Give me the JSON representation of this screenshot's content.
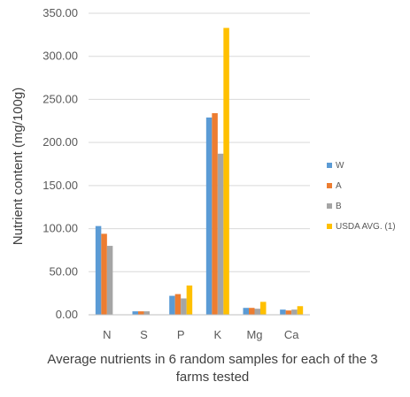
{
  "chart_data": {
    "type": "bar",
    "title": "",
    "xlabel": "Average nutrients in 6 random samples for each of the 3 farms tested",
    "ylabel": "Nutrient content (mg/100g)",
    "categories": [
      "N",
      "S",
      "P",
      "K",
      "Mg",
      "Ca"
    ],
    "ylim": [
      0,
      350
    ],
    "yticks": [
      "0.00",
      "50.00",
      "100.00",
      "150.00",
      "200.00",
      "250.00",
      "300.00",
      "350.00"
    ],
    "grid": true,
    "legend_position": "right",
    "series": [
      {
        "name": "W",
        "color": "#5B9BD5",
        "values": [
          103,
          4,
          22,
          229,
          8,
          6
        ]
      },
      {
        "name": "A",
        "color": "#ED7D31",
        "values": [
          94,
          4,
          24,
          234,
          8,
          5
        ]
      },
      {
        "name": "B",
        "color": "#A5A5A5",
        "values": [
          80,
          4,
          19,
          187,
          7,
          6
        ]
      },
      {
        "name": "USDA AVG. (1)",
        "color": "#FFC000",
        "values": [
          null,
          null,
          34,
          333,
          15,
          10
        ]
      }
    ]
  }
}
